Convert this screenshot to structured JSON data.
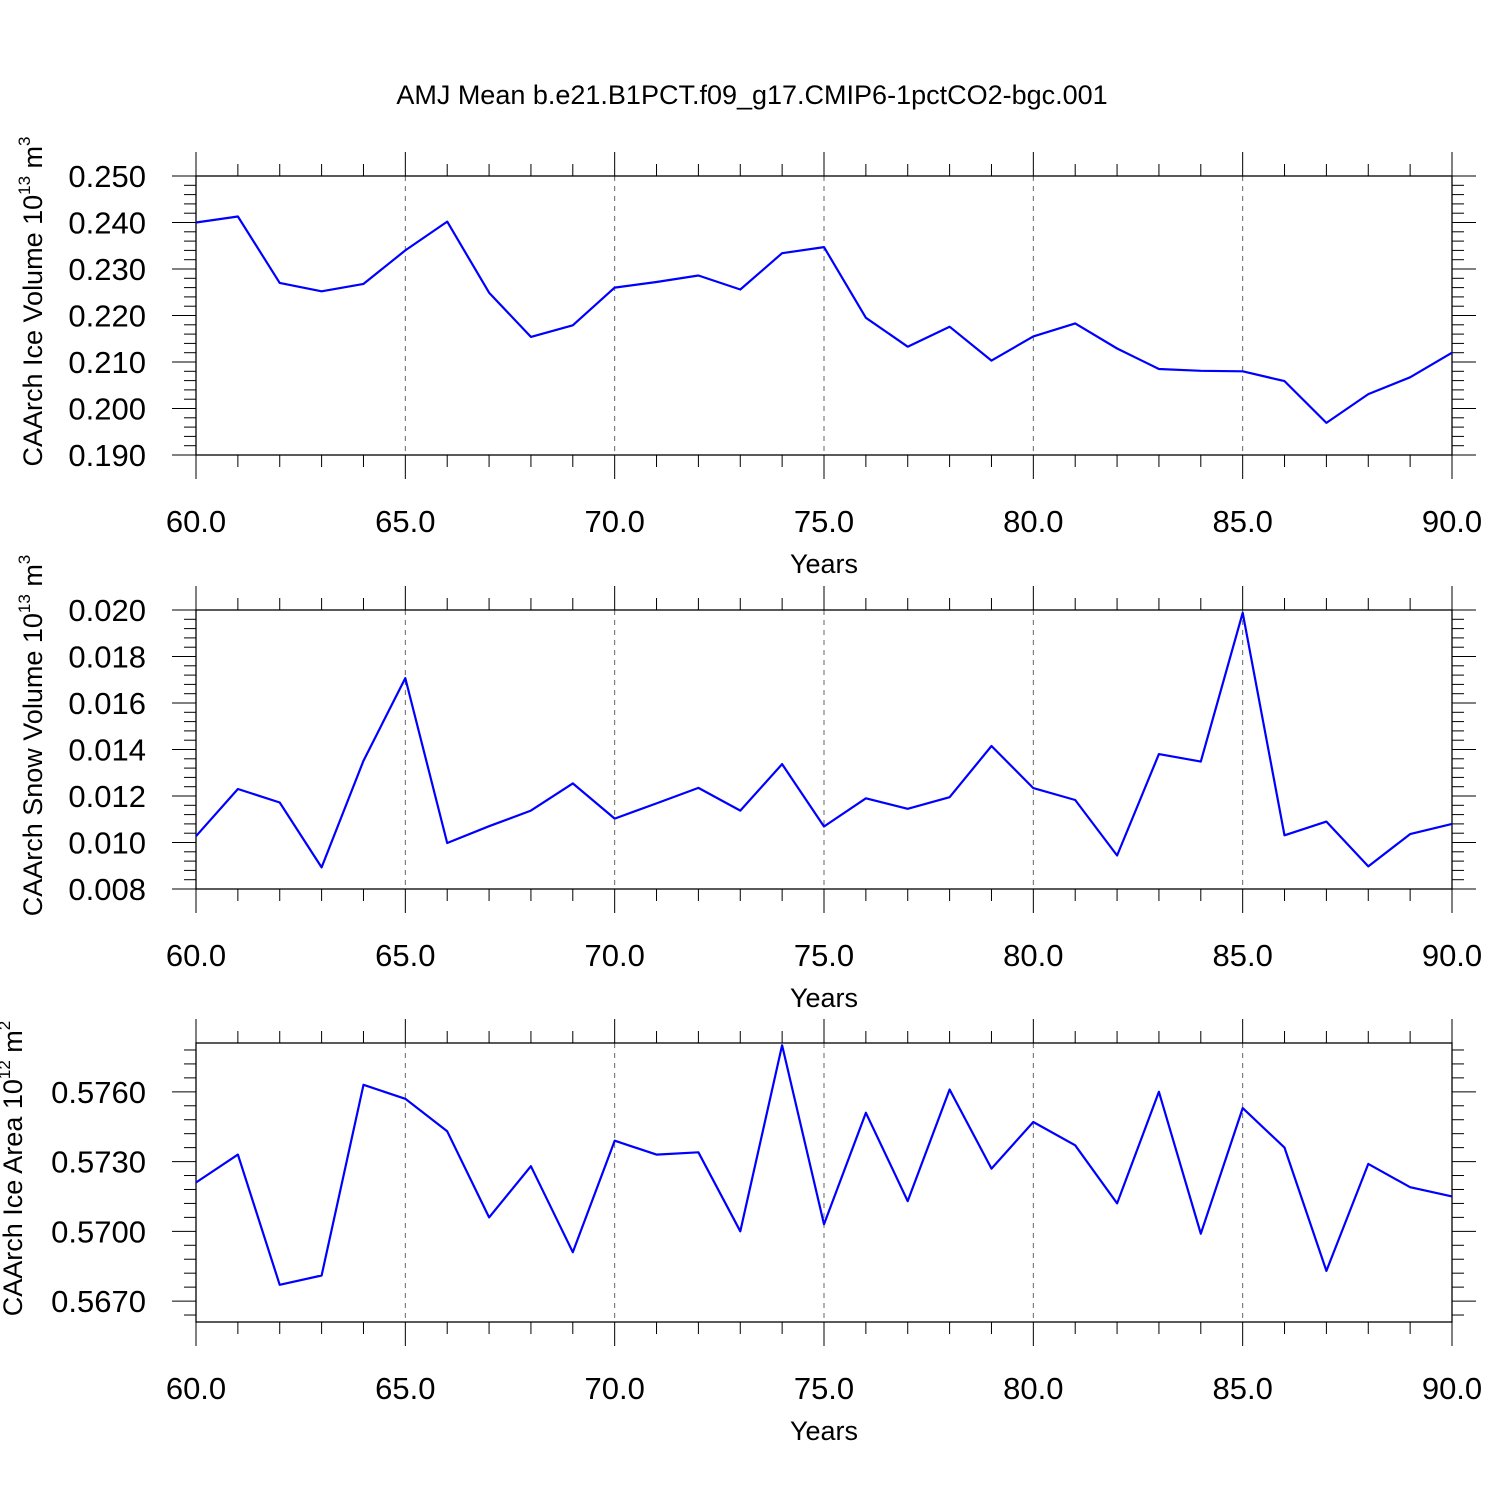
{
  "figure": {
    "title": "AMJ Mean b.e21.B1PCT.f09_g17.CMIP6-1pctCO2-bgc.001"
  },
  "chart_data": [
    {
      "type": "line",
      "title": "AMJ Mean b.e21.B1PCT.f09_g17.CMIP6-1pctCO2-bgc.001",
      "xlabel": "Years",
      "ylabel": "CAArch Ice Volume 10^13 m^3",
      "ylabel_parts": {
        "base": "CAArch Ice Volume 10",
        "exp1": "13",
        "unit": " m",
        "exp2": "3"
      },
      "xlim": [
        60,
        90
      ],
      "ylim": [
        0.19,
        0.25
      ],
      "xticks": [
        60,
        65,
        70,
        75,
        80,
        85,
        90
      ],
      "xtick_labels": [
        "60.0",
        "65.0",
        "70.0",
        "75.0",
        "80.0",
        "85.0",
        "90.0"
      ],
      "yticks": [
        0.19,
        0.2,
        0.21,
        0.22,
        0.23,
        0.24,
        0.25
      ],
      "ytick_labels": [
        "0.190",
        "0.200",
        "0.210",
        "0.220",
        "0.230",
        "0.240",
        "0.250"
      ],
      "grid": "vertical-dashed",
      "color": "#0000ff",
      "x": [
        60,
        61,
        62,
        63,
        64,
        65,
        66,
        67,
        68,
        69,
        70,
        71,
        72,
        73,
        74,
        75,
        76,
        77,
        78,
        79,
        80,
        81,
        82,
        83,
        84,
        85,
        86,
        87,
        88,
        89,
        90
      ],
      "y": [
        0.24,
        0.2413,
        0.227,
        0.2252,
        0.2268,
        0.234,
        0.2402,
        0.2249,
        0.2154,
        0.2179,
        0.226,
        0.2272,
        0.2286,
        0.2256,
        0.2334,
        0.2347,
        0.2195,
        0.2133,
        0.2176,
        0.2103,
        0.2155,
        0.2183,
        0.2129,
        0.2085,
        0.2081,
        0.208,
        0.2059,
        0.1969,
        0.2031,
        0.2067,
        0.212
      ]
    },
    {
      "type": "line",
      "xlabel": "Years",
      "ylabel": "CAArch Snow Volume 10^13 m^3",
      "ylabel_parts": {
        "base": "CAArch Snow Volume 10",
        "exp1": "13",
        "unit": " m",
        "exp2": "3"
      },
      "xlim": [
        60,
        90
      ],
      "ylim": [
        0.008,
        0.02
      ],
      "xticks": [
        60,
        65,
        70,
        75,
        80,
        85,
        90
      ],
      "xtick_labels": [
        "60.0",
        "65.0",
        "70.0",
        "75.0",
        "80.0",
        "85.0",
        "90.0"
      ],
      "yticks": [
        0.008,
        0.01,
        0.012,
        0.014,
        0.016,
        0.018,
        0.02
      ],
      "ytick_labels": [
        "0.008",
        "0.010",
        "0.012",
        "0.014",
        "0.016",
        "0.018",
        "0.020"
      ],
      "grid": "vertical-dashed",
      "color": "#0000ff",
      "x": [
        60,
        61,
        62,
        63,
        64,
        65,
        66,
        67,
        68,
        69,
        70,
        71,
        72,
        73,
        74,
        75,
        76,
        77,
        78,
        79,
        80,
        81,
        82,
        83,
        84,
        85,
        86,
        87,
        88,
        89,
        90
      ],
      "y": [
        0.01027,
        0.0123,
        0.01172,
        0.00893,
        0.01352,
        0.01707,
        0.00998,
        0.0107,
        0.01137,
        0.01254,
        0.01103,
        0.01168,
        0.01235,
        0.01137,
        0.01337,
        0.01069,
        0.0119,
        0.01145,
        0.01195,
        0.01415,
        0.01234,
        0.01183,
        0.00944,
        0.0138,
        0.01348,
        0.01988,
        0.01031,
        0.0109,
        0.00897,
        0.01036,
        0.0108
      ]
    },
    {
      "type": "line",
      "xlabel": "Years",
      "ylabel": "CAArch Ice Area 10^12 m^2",
      "ylabel_parts": {
        "base": "CAArch Ice Area 10",
        "exp1": "12",
        "unit": " m",
        "exp2": "2"
      },
      "xlim": [
        60,
        90
      ],
      "ylim": [
        0.5661,
        0.5781
      ],
      "xticks": [
        60,
        65,
        70,
        75,
        80,
        85,
        90
      ],
      "xtick_labels": [
        "60.0",
        "65.0",
        "70.0",
        "75.0",
        "80.0",
        "85.0",
        "90.0"
      ],
      "yticks": [
        0.567,
        0.57,
        0.573,
        0.576
      ],
      "ytick_labels": [
        "0.5670",
        "0.5700",
        "0.5730",
        "0.5760"
      ],
      "grid": "vertical-dashed",
      "color": "#0000ff",
      "x": [
        60,
        61,
        62,
        63,
        64,
        65,
        66,
        67,
        68,
        69,
        70,
        71,
        72,
        73,
        74,
        75,
        76,
        77,
        78,
        79,
        80,
        81,
        82,
        83,
        84,
        85,
        86,
        87,
        88,
        89,
        90
      ],
      "y": [
        0.5721,
        0.5733,
        0.5677,
        0.5681,
        0.5763,
        0.5757,
        0.5743,
        0.5706,
        0.5728,
        0.5691,
        0.5739,
        0.5733,
        0.5734,
        0.57,
        0.578,
        0.5703,
        0.5751,
        0.5713,
        0.5761,
        0.5727,
        0.5747,
        0.5737,
        0.5712,
        0.576,
        0.5699,
        0.5753,
        0.5736,
        0.5683,
        0.5729,
        0.5719,
        0.5715
      ]
    }
  ]
}
